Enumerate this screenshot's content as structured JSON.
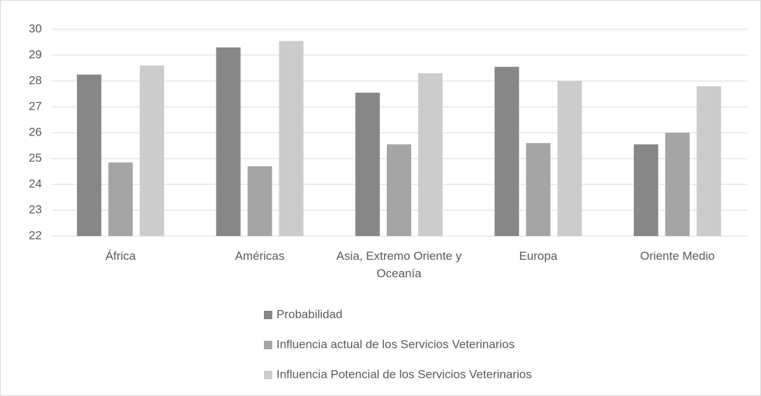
{
  "chart_data": {
    "type": "bar",
    "categories": [
      "África",
      "Américas",
      "Asia, Extremo Oriente y Oceanía",
      "Europa",
      "Oriente Medio"
    ],
    "series": [
      {
        "name": "Probabilidad",
        "color": "#878787",
        "values": [
          28.25,
          29.3,
          27.55,
          28.55,
          25.55
        ]
      },
      {
        "name": "Influencia actual de los Servicios Veterinarios",
        "color": "#a5a5a5",
        "values": [
          24.85,
          24.7,
          25.55,
          25.6,
          26.0
        ]
      },
      {
        "name": "Influencia Potencial de los Servicios Veterinarios",
        "color": "#cccccc",
        "values": [
          28.6,
          29.55,
          28.3,
          28.0,
          27.8
        ]
      }
    ],
    "ylim": [
      22,
      30
    ],
    "yticks": [
      22,
      23,
      24,
      25,
      26,
      27,
      28,
      29,
      30
    ],
    "grid": true,
    "legend": "bottom"
  }
}
